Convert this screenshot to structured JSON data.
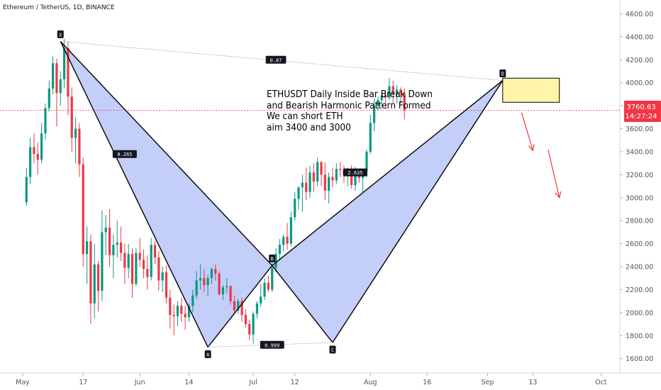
{
  "header": {
    "symbol_line": "Ethereum / TetherUS, 1D, BINANCE"
  },
  "annotation": {
    "lines": [
      "ETHUSDT Daily Inside Bar Break Down",
      "and Bearish Harmonic Pattern Formed",
      "We can short ETH",
      "aim 3400 and 3000"
    ]
  },
  "price_badge": {
    "price": "3760.63",
    "countdown": "14:27:24",
    "color": "#f23645"
  },
  "colors": {
    "up": "#089981",
    "down": "#f23645",
    "pattern_fill": "#b8c6f8",
    "zone_fill": "#fff4a8",
    "zone_border": "#000000"
  },
  "chart_data": {
    "type": "candlestick",
    "title": "",
    "xlabel": "",
    "ylabel": "",
    "ylim": [
      1475,
      4720
    ],
    "y_ticks": [
      1600,
      1800,
      2000,
      2200,
      2400,
      2600,
      2800,
      3000,
      3200,
      3400,
      3600,
      3800,
      4000,
      4200,
      4400,
      4600
    ],
    "y_tick_labels": [
      "1600.00",
      "1800.00",
      "2000.00",
      "2200.00",
      "2400.00",
      "2600.00",
      "2800.00",
      "3000.00",
      "3200.00",
      "3400.00",
      "3600.00",
      "3800.00",
      "4000.00",
      "4200.00",
      "4400.00",
      "4600.00"
    ],
    "x_ticks": [
      {
        "label": "May",
        "day": 0
      },
      {
        "label": "17",
        "day": 16
      },
      {
        "label": "Jun",
        "day": 31
      },
      {
        "label": "14",
        "day": 44
      },
      {
        "label": "Jul",
        "day": 61
      },
      {
        "label": "12",
        "day": 72
      },
      {
        "label": "Aug",
        "day": 92
      },
      {
        "label": "16",
        "day": 107
      },
      {
        "label": "Sep",
        "day": 123
      },
      {
        "label": "13",
        "day": 135
      },
      {
        "label": "Oct",
        "day": 153
      }
    ],
    "x_domain": [
      -6,
      158
    ],
    "grid": false,
    "candles": [
      [
        2960,
        3260,
        2930,
        3180
      ],
      [
        3180,
        3520,
        3120,
        3440
      ],
      [
        3440,
        3560,
        3300,
        3380
      ],
      [
        3380,
        3480,
        3200,
        3330
      ],
      [
        3330,
        3650,
        3300,
        3560
      ],
      [
        3560,
        3820,
        3500,
        3780
      ],
      [
        3780,
        4020,
        3750,
        3950
      ],
      [
        3950,
        4230,
        3900,
        4170
      ],
      [
        4170,
        4210,
        3620,
        3910
      ],
      [
        3910,
        4100,
        3800,
        4030
      ],
      [
        4030,
        4380,
        3950,
        4300
      ],
      [
        4300,
        4360,
        3720,
        3880
      ],
      [
        3880,
        3960,
        3400,
        3520
      ],
      [
        3520,
        3700,
        3300,
        3600
      ],
      [
        3600,
        3650,
        3180,
        3290
      ],
      [
        3290,
        3350,
        2400,
        2510
      ],
      [
        2510,
        2750,
        2250,
        2620
      ],
      [
        2620,
        2680,
        1900,
        2080
      ],
      [
        2080,
        2600,
        1950,
        2420
      ],
      [
        2420,
        2450,
        2010,
        2190
      ],
      [
        2190,
        2890,
        2100,
        2700
      ],
      [
        2700,
        2850,
        2500,
        2740
      ],
      [
        2740,
        2900,
        2400,
        2500
      ],
      [
        2500,
        2680,
        2300,
        2590
      ],
      [
        2590,
        2800,
        2480,
        2610
      ],
      [
        2610,
        2750,
        2450,
        2520
      ],
      [
        2520,
        2600,
        2250,
        2390
      ],
      [
        2390,
        2600,
        2300,
        2510
      ],
      [
        2510,
        2560,
        2130,
        2250
      ],
      [
        2250,
        2560,
        2230,
        2520
      ],
      [
        2520,
        2650,
        2400,
        2460
      ],
      [
        2460,
        2550,
        2300,
        2380
      ],
      [
        2380,
        2500,
        2200,
        2310
      ],
      [
        2310,
        2650,
        2280,
        2590
      ],
      [
        2590,
        2620,
        2420,
        2480
      ],
      [
        2480,
        2540,
        2190,
        2280
      ],
      [
        2280,
        2400,
        2180,
        2350
      ],
      [
        2350,
        2410,
        2080,
        2130
      ],
      [
        2130,
        2200,
        1860,
        1980
      ],
      [
        1980,
        2070,
        1800,
        1970
      ],
      [
        1970,
        2100,
        1880,
        2060
      ],
      [
        2060,
        2130,
        1920,
        1990
      ],
      [
        1990,
        2060,
        1850,
        1960
      ],
      [
        1960,
        2080,
        1920,
        2060
      ],
      [
        2060,
        2200,
        2000,
        2150
      ],
      [
        2150,
        2360,
        2120,
        2280
      ],
      [
        2280,
        2420,
        2200,
        2300
      ],
      [
        2300,
        2380,
        2180,
        2240
      ],
      [
        2240,
        2330,
        2140,
        2300
      ],
      [
        2300,
        2390,
        2250,
        2380
      ],
      [
        2380,
        2420,
        2280,
        2340
      ],
      [
        2340,
        2360,
        2150,
        2160
      ],
      [
        2160,
        2240,
        2110,
        2220
      ],
      [
        2220,
        2300,
        2170,
        2230
      ],
      [
        2230,
        2240,
        2070,
        2100
      ],
      [
        2100,
        2150,
        1990,
        2020
      ],
      [
        2020,
        2120,
        1990,
        2100
      ],
      [
        2100,
        2130,
        1920,
        1980
      ],
      [
        1980,
        2030,
        1870,
        1900
      ],
      [
        1900,
        1940,
        1760,
        1810
      ],
      [
        1810,
        2010,
        1730,
        1990
      ],
      [
        1990,
        2100,
        1950,
        2080
      ],
      [
        2080,
        2250,
        2050,
        2140
      ],
      [
        2140,
        2300,
        2110,
        2260
      ],
      [
        2260,
        2320,
        2180,
        2200
      ],
      [
        2200,
        2500,
        2180,
        2390
      ],
      [
        2390,
        2560,
        2350,
        2510
      ],
      [
        2510,
        2640,
        2450,
        2590
      ],
      [
        2590,
        2680,
        2530,
        2660
      ],
      [
        2660,
        2780,
        2550,
        2600
      ],
      [
        2600,
        2880,
        2580,
        2830
      ],
      [
        2830,
        3050,
        2800,
        2990
      ],
      [
        2990,
        3100,
        2900,
        3090
      ],
      [
        3090,
        3200,
        2880,
        3130
      ],
      [
        3130,
        3260,
        2980,
        3050
      ],
      [
        3050,
        3280,
        3000,
        3220
      ],
      [
        3220,
        3300,
        3050,
        3140
      ],
      [
        3140,
        3350,
        3100,
        3310
      ],
      [
        3310,
        3320,
        3100,
        3200
      ],
      [
        3200,
        3310,
        2980,
        3060
      ],
      [
        3060,
        3220,
        2950,
        3180
      ],
      [
        3180,
        3260,
        3090,
        3150
      ],
      [
        3150,
        3300,
        3120,
        3250
      ],
      [
        3250,
        3310,
        3180,
        3240
      ],
      [
        3240,
        3280,
        3130,
        3200
      ],
      [
        3200,
        3260,
        3100,
        3230
      ],
      [
        3230,
        3280,
        3080,
        3110
      ],
      [
        3110,
        3270,
        3060,
        3240
      ],
      [
        3240,
        3250,
        3130,
        3170
      ],
      [
        3170,
        3250,
        3050,
        3230
      ],
      [
        3230,
        3420,
        3180,
        3400
      ],
      [
        3400,
        3720,
        3380,
        3650
      ],
      [
        3650,
        3860,
        3580,
        3800
      ],
      [
        3800,
        3880,
        3760,
        3850
      ],
      [
        3850,
        3920,
        3790,
        3890
      ],
      [
        3890,
        3930,
        3780,
        3870
      ],
      [
        3870,
        4040,
        3850,
        3970
      ],
      [
        3970,
        4020,
        3820,
        3900
      ],
      [
        3900,
        3980,
        3820,
        3940
      ],
      [
        3940,
        3960,
        3820,
        3910
      ],
      [
        3910,
        3950,
        3680,
        3760
      ]
    ],
    "candle_start_day": 1,
    "pattern": {
      "points": [
        {
          "label": "X",
          "day": 10,
          "price": 4360
        },
        {
          "label": "A",
          "day": 49,
          "price": 1700
        },
        {
          "label": "B",
          "day": 66,
          "price": 2410
        },
        {
          "label": "C",
          "day": 82,
          "price": 1740
        },
        {
          "label": "D",
          "day": 127,
          "price": 4020
        }
      ],
      "ratios": [
        {
          "label": "0.265",
          "day": 27,
          "price": 3380
        },
        {
          "label": "0.87",
          "day": 67,
          "price": 4200
        },
        {
          "label": "0.999",
          "day": 66,
          "price": 1720
        },
        {
          "label": "2.635",
          "day": 88,
          "price": 3220
        }
      ]
    },
    "zone": {
      "day_start": 127,
      "day_end": 142,
      "price_top": 4040,
      "price_bottom": 3830
    },
    "current_price": 3760.63,
    "arrows": [
      {
        "from_day": 132,
        "from_price": 3740,
        "to_day": 135,
        "to_price": 3410
      },
      {
        "from_day": 139,
        "from_price": 3420,
        "to_day": 142,
        "to_price": 3000
      }
    ]
  }
}
